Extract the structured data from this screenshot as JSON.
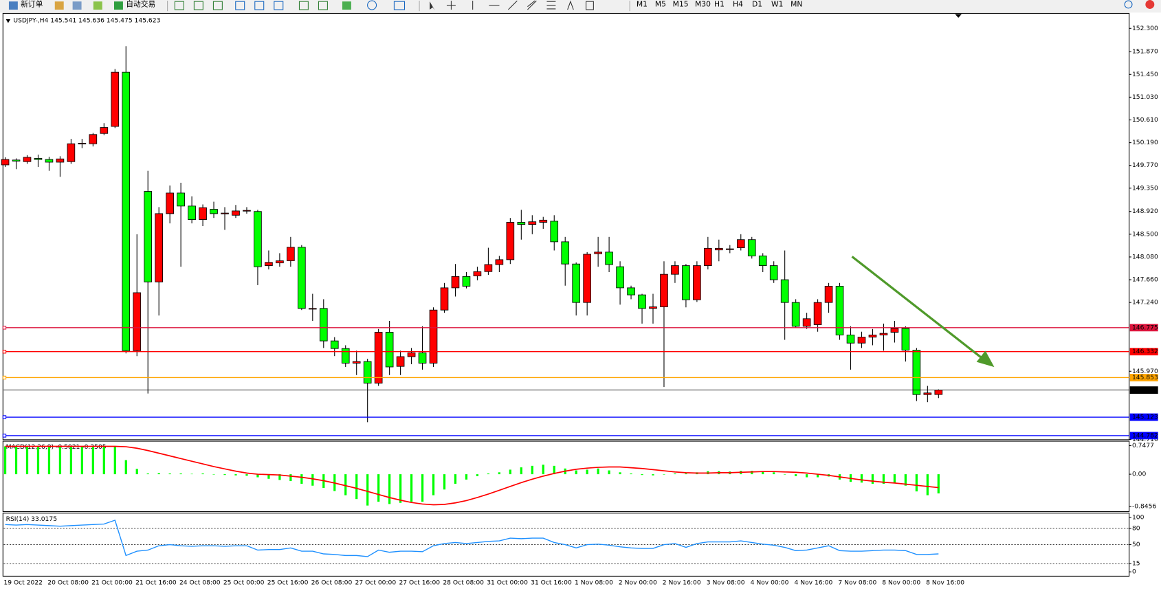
{
  "toolbar": {
    "buttons": [
      "新订单",
      "自动交易"
    ],
    "timeframes": [
      "M1",
      "M5",
      "M15",
      "M30",
      "H1",
      "H4",
      "D1",
      "W1",
      "MN"
    ]
  },
  "chart_data": [
    {
      "type": "candlestick",
      "title": "USDJPY-,H4  145.541 145.636 145.475 145.623",
      "categories": [
        "19 Oct 2022",
        null,
        null,
        null,
        "20 Oct 08:00",
        null,
        null,
        null,
        "21 Oct 00:00",
        null,
        null,
        null,
        "21 Oct 16:00",
        null,
        null,
        null,
        "24 Oct 08:00",
        null,
        null,
        null,
        "25 Oct 00:00",
        null,
        null,
        null,
        "25 Oct 16:00",
        null,
        null,
        null,
        "26 Oct 08:00",
        null,
        null,
        null,
        "27 Oct 00:00",
        null,
        null,
        null,
        "27 Oct 16:00",
        null,
        null,
        null,
        "28 Oct 08:00",
        null,
        null,
        null,
        "31 Oct 00:00",
        null,
        null,
        null,
        "31 Oct 16:00",
        null,
        null,
        null,
        "1 Nov 08:00",
        null,
        null,
        null,
        "2 Nov 00:00",
        null,
        null,
        null,
        "2 Nov 16:00",
        null,
        null,
        null,
        "3 Nov 08:00",
        null,
        null,
        null,
        "4 Nov 00:00",
        null,
        null,
        null,
        "4 Nov 16:00",
        null,
        null,
        null,
        "7 Nov 08:00",
        null,
        null,
        null,
        "8 Nov 00:00",
        null,
        null,
        null,
        "8 Nov 16:00",
        null
      ],
      "open": [
        149.78,
        149.87,
        149.84,
        149.9,
        149.88,
        149.83,
        149.84,
        150.17,
        150.17,
        150.36,
        150.49,
        151.49,
        146.35,
        149.29,
        147.62,
        148.88,
        149.26,
        149.02,
        148.77,
        148.96,
        148.88,
        148.85,
        148.93,
        148.92,
        147.92,
        147.97,
        148.01,
        148.26,
        147.12,
        147.13,
        146.53,
        146.39,
        146.12,
        146.15,
        145.75,
        146.69,
        146.06,
        146.24,
        146.31,
        146.12,
        147.1,
        147.51,
        147.72,
        147.73,
        147.81,
        147.94,
        148.03,
        148.72,
        148.68,
        148.72,
        148.74,
        148.36,
        147.95,
        147.24,
        148.14,
        148.17,
        147.9,
        147.51,
        147.38,
        147.13,
        147.16,
        147.76,
        147.92,
        147.29,
        147.92,
        148.21,
        148.22,
        148.25,
        148.4,
        148.1,
        147.92,
        147.66,
        147.24,
        146.8,
        146.83,
        147.24,
        147.54,
        146.64,
        146.49,
        146.6,
        146.64,
        146.69,
        146.76,
        146.36,
        145.54,
        145.541
      ],
      "high": [
        149.92,
        149.9,
        149.96,
        149.97,
        149.93,
        149.94,
        150.26,
        150.26,
        150.37,
        150.55,
        151.55,
        151.97,
        148.5,
        149.67,
        149.0,
        149.4,
        149.45,
        149.2,
        149.05,
        149.1,
        149.0,
        149.04,
        149.0,
        148.95,
        148.2,
        148.15,
        148.45,
        148.3,
        147.4,
        147.3,
        146.6,
        146.45,
        146.35,
        146.2,
        146.75,
        146.9,
        146.35,
        146.4,
        146.8,
        147.15,
        147.6,
        147.95,
        147.8,
        147.9,
        148.25,
        148.1,
        148.8,
        148.95,
        148.85,
        148.82,
        148.85,
        148.45,
        147.98,
        148.17,
        148.45,
        148.45,
        148.0,
        147.55,
        147.4,
        147.4,
        148.0,
        148.0,
        147.95,
        148.0,
        148.45,
        148.4,
        148.3,
        148.5,
        148.45,
        148.15,
        148.0,
        148.2,
        147.3,
        147.05,
        147.3,
        147.6,
        147.6,
        146.8,
        146.7,
        146.75,
        146.85,
        146.9,
        146.8,
        146.4,
        145.7,
        145.636
      ],
      "low": [
        149.74,
        149.7,
        149.8,
        149.74,
        149.67,
        149.56,
        149.8,
        150.09,
        150.12,
        150.33,
        150.46,
        146.3,
        146.25,
        145.56,
        147.0,
        148.7,
        147.9,
        148.7,
        148.65,
        148.8,
        148.58,
        148.8,
        148.88,
        147.56,
        147.85,
        147.9,
        147.9,
        147.1,
        146.9,
        146.4,
        146.25,
        146.05,
        145.9,
        145.03,
        145.7,
        145.9,
        145.9,
        146.1,
        146.0,
        146.05,
        147.05,
        147.35,
        147.5,
        147.65,
        147.75,
        147.8,
        147.95,
        148.4,
        148.5,
        148.6,
        148.2,
        147.55,
        147.0,
        147.0,
        147.9,
        147.8,
        147.2,
        147.3,
        146.85,
        146.85,
        145.68,
        147.6,
        147.15,
        147.25,
        147.85,
        148.0,
        148.15,
        148.2,
        148.05,
        147.8,
        147.6,
        146.55,
        146.78,
        146.75,
        146.7,
        147.05,
        146.55,
        146.0,
        146.4,
        146.45,
        146.35,
        146.5,
        146.15,
        145.42,
        145.4,
        145.475
      ],
      "close": [
        149.88,
        149.85,
        149.92,
        149.88,
        149.83,
        149.89,
        150.17,
        150.18,
        150.34,
        150.47,
        151.49,
        146.35,
        147.42,
        147.62,
        148.88,
        149.26,
        149.02,
        148.77,
        148.99,
        148.88,
        148.89,
        148.93,
        148.94,
        147.9,
        147.98,
        148.01,
        148.26,
        147.13,
        147.13,
        146.53,
        146.39,
        146.12,
        146.15,
        145.75,
        146.69,
        146.05,
        146.24,
        146.31,
        146.12,
        147.1,
        147.51,
        147.72,
        147.54,
        147.81,
        147.94,
        148.03,
        148.72,
        148.68,
        148.73,
        148.76,
        148.36,
        147.95,
        147.24,
        148.13,
        148.17,
        147.94,
        147.51,
        147.38,
        147.13,
        147.16,
        147.76,
        147.92,
        147.29,
        147.92,
        148.24,
        148.24,
        148.23,
        148.4,
        148.1,
        147.92,
        147.66,
        147.24,
        146.8,
        146.94,
        147.24,
        147.54,
        146.64,
        146.49,
        146.6,
        146.64,
        146.67,
        146.76,
        146.36,
        145.54,
        145.57,
        145.623
      ],
      "up_color": "#ff0000",
      "down_color": "#00ff00",
      "ylim": [
        144.72,
        152.55
      ],
      "yticks": [
        {
          "value": 152.3,
          "label": "152.300"
        },
        {
          "value": 151.87,
          "label": "151.870"
        },
        {
          "value": 151.45,
          "label": "151.450"
        },
        {
          "value": 151.03,
          "label": "151.030"
        },
        {
          "value": 150.61,
          "label": "150.610"
        },
        {
          "value": 150.19,
          "label": "150.190"
        },
        {
          "value": 149.77,
          "label": "149.770"
        },
        {
          "value": 149.35,
          "label": "149.350"
        },
        {
          "value": 148.92,
          "label": "148.920"
        },
        {
          "value": 148.5,
          "label": "148.500"
        },
        {
          "value": 148.08,
          "label": "148.080"
        },
        {
          "value": 147.66,
          "label": "147.660"
        },
        {
          "value": 147.24,
          "label": "147.240"
        },
        {
          "value": 145.97,
          "label": "145.970"
        },
        {
          "value": 144.71,
          "label": "144.710"
        }
      ],
      "levels": [
        {
          "value": 146.775,
          "color": "#dc143c"
        },
        {
          "value": 146.332,
          "color": "#ff0000"
        },
        {
          "value": 145.853,
          "color": "#ffa500"
        },
        {
          "value": 145.123,
          "color": "#0000ff"
        },
        {
          "value": 144.782,
          "color": "#0000ff"
        }
      ]
    },
    {
      "type": "macd",
      "title": "MACD(12,26,9) -0.5021 -0.3505",
      "series": [
        {
          "style": "histogram",
          "color": "#00ff00",
          "values": [
            0.73,
            0.73,
            0.72,
            0.72,
            0.72,
            0.72,
            0.72,
            0.72,
            0.72,
            0.72,
            0.73,
            0.37,
            0.14,
            0.02,
            0.03,
            0.02,
            0.02,
            0.01,
            0.02,
            0.0,
            -0.02,
            -0.03,
            -0.04,
            -0.08,
            -0.12,
            -0.15,
            -0.18,
            -0.25,
            -0.3,
            -0.36,
            -0.44,
            -0.55,
            -0.65,
            -0.82,
            -0.72,
            -0.78,
            -0.75,
            -0.72,
            -0.72,
            -0.55,
            -0.4,
            -0.25,
            -0.14,
            -0.05,
            0.02,
            0.05,
            0.12,
            0.18,
            0.22,
            0.25,
            0.22,
            0.15,
            0.1,
            0.12,
            0.15,
            0.1,
            0.05,
            0.02,
            -0.02,
            -0.03,
            0.0,
            0.02,
            0.02,
            0.05,
            0.08,
            0.08,
            0.07,
            0.09,
            0.09,
            0.08,
            0.05,
            0.0,
            -0.05,
            -0.08,
            -0.08,
            -0.06,
            -0.14,
            -0.2,
            -0.22,
            -0.25,
            -0.25,
            -0.23,
            -0.3,
            -0.45,
            -0.55,
            -0.5021
          ]
        },
        {
          "style": "line",
          "color": "#ff0000",
          "values": [
            0.73,
            0.73,
            0.73,
            0.73,
            0.73,
            0.73,
            0.73,
            0.73,
            0.73,
            0.73,
            0.73,
            0.72,
            0.68,
            0.62,
            0.55,
            0.48,
            0.41,
            0.34,
            0.27,
            0.2,
            0.14,
            0.08,
            0.03,
            0.0,
            -0.01,
            -0.02,
            -0.05,
            -0.08,
            -0.12,
            -0.17,
            -0.23,
            -0.3,
            -0.37,
            -0.45,
            -0.53,
            -0.61,
            -0.68,
            -0.74,
            -0.78,
            -0.8,
            -0.79,
            -0.75,
            -0.69,
            -0.61,
            -0.52,
            -0.42,
            -0.32,
            -0.22,
            -0.13,
            -0.05,
            0.02,
            0.08,
            0.13,
            0.16,
            0.18,
            0.19,
            0.19,
            0.17,
            0.15,
            0.12,
            0.09,
            0.06,
            0.04,
            0.03,
            0.03,
            0.04,
            0.04,
            0.05,
            0.06,
            0.07,
            0.07,
            0.06,
            0.05,
            0.03,
            0.0,
            -0.03,
            -0.07,
            -0.11,
            -0.15,
            -0.18,
            -0.21,
            -0.23,
            -0.26,
            -0.29,
            -0.32,
            -0.3505
          ]
        }
      ],
      "ylim": [
        -0.98,
        0.845
      ],
      "yticks": [
        0.7477,
        {
          "value": 0,
          "label": "0.00"
        },
        -0.8456
      ]
    },
    {
      "type": "line",
      "title": "RSI(14) 33.0175",
      "series": [
        {
          "color": "#1e90ff",
          "values": [
            87,
            86,
            87,
            86,
            85,
            84,
            85,
            86,
            87,
            88,
            95,
            30,
            38,
            40,
            48,
            50,
            48,
            47,
            48,
            48,
            47,
            48,
            48,
            40,
            41,
            41,
            44,
            38,
            38,
            33,
            32,
            30,
            30,
            28,
            40,
            36,
            38,
            38,
            37,
            48,
            52,
            54,
            52,
            54,
            56,
            57,
            62,
            61,
            62,
            62,
            54,
            50,
            44,
            50,
            51,
            49,
            46,
            44,
            43,
            43,
            50,
            52,
            45,
            52,
            55,
            55,
            55,
            57,
            54,
            51,
            49,
            45,
            39,
            40,
            44,
            48,
            39,
            38,
            38,
            39,
            40,
            40,
            39,
            32,
            32,
            33.0175
          ]
        }
      ],
      "ylim": [
        -8,
        108
      ],
      "yticks": [
        100,
        80,
        50,
        15,
        0
      ],
      "levels": [
        80,
        50,
        15
      ]
    }
  ]
}
